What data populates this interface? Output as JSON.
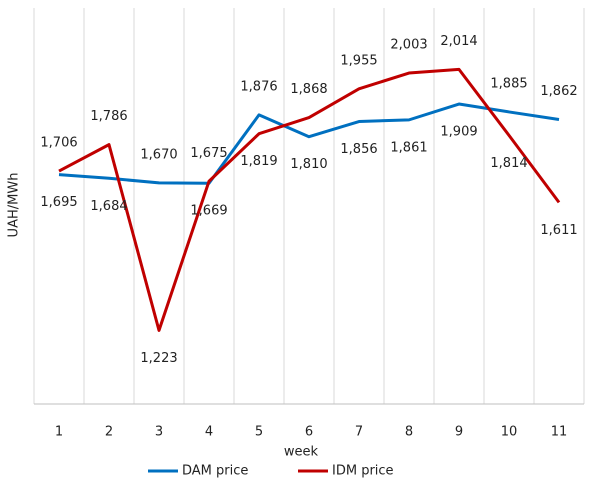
{
  "chart_data": {
    "type": "line",
    "x_label": "week",
    "y_label": "UAH/MWh",
    "categories": [
      "1",
      "2",
      "3",
      "4",
      "5",
      "6",
      "7",
      "8",
      "9",
      "10",
      "11"
    ],
    "series": [
      {
        "name": "DAM price",
        "color": "#0070c0",
        "values": [
          1695,
          1684,
          1670,
          1669,
          1876,
          1810,
          1856,
          1861,
          1909,
          1885,
          1862
        ],
        "value_labels": [
          "1,695",
          "1,684",
          "1,670",
          "1,669",
          "1,876",
          "1,810",
          "1,856",
          "1,861",
          "1,909",
          "1,885",
          "1,862"
        ]
      },
      {
        "name": "IDM price",
        "color": "#c00000",
        "values": [
          1706,
          1786,
          1223,
          1675,
          1819,
          1868,
          1955,
          2003,
          2014,
          1814,
          1611
        ],
        "value_labels": [
          "1,706",
          "1,786",
          "1,223",
          "1,675",
          "1,819",
          "1,868",
          "1,955",
          "2,003",
          "2,014",
          "1,814",
          "1,611"
        ]
      }
    ],
    "ylim": [
      1000,
      2200
    ],
    "legend": "bottom"
  }
}
